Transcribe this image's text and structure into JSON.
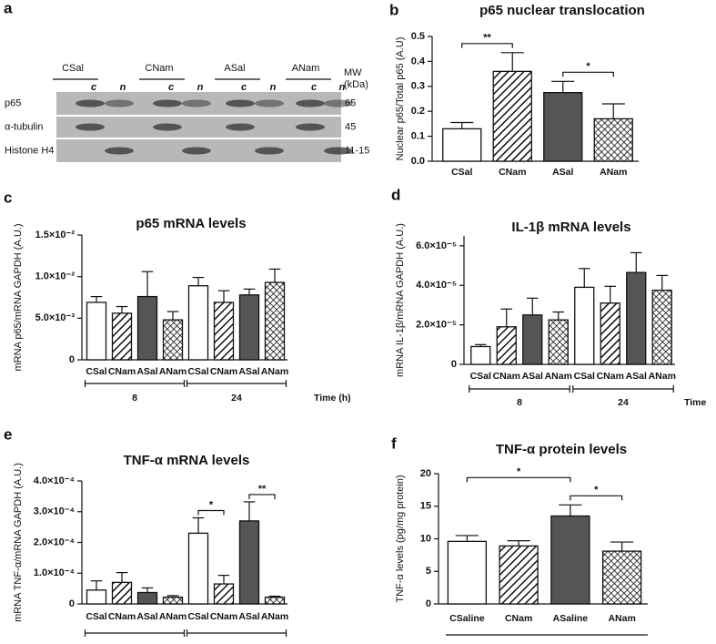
{
  "blot": {
    "panel": "a",
    "groups": [
      "CSal",
      "CNam",
      "ASal",
      "ANam"
    ],
    "lanes": [
      "c",
      "n"
    ],
    "mw_header": [
      "MW",
      "(kDa)"
    ],
    "rows": [
      {
        "label": "p65",
        "mw": "65"
      },
      {
        "label": "α-tubulin",
        "mw": "45"
      },
      {
        "label": "Histone H4",
        "mw": "11-15"
      }
    ]
  },
  "chart_data": [
    {
      "type": "bar",
      "panel": "b",
      "title": "p65 nuclear translocation",
      "ylabel": "Nuclear p65/Total p65 (A.U)",
      "categories": [
        "CSal",
        "CNam",
        "ASal",
        "ANam"
      ],
      "values": [
        0.13,
        0.36,
        0.275,
        0.17
      ],
      "errors": [
        0.025,
        0.075,
        0.045,
        0.06
      ],
      "fills": [
        "#ffffff",
        "hatch",
        "#555555",
        "crosshatch"
      ],
      "ylim": [
        0,
        0.5
      ],
      "yticks": [
        {
          "value": 0,
          "label": "0.0"
        },
        0.1,
        0.2,
        0.3,
        0.4,
        0.5
      ],
      "annotations": [
        "**",
        "*"
      ]
    },
    {
      "type": "bar",
      "panel": "c",
      "title": "p65 mRNA levels",
      "ylabel": "mRNA p65/mRNA GAPDH (A.U.)",
      "categories": [
        "CSal",
        "CNam",
        "ASal",
        "ANam",
        "CSal",
        "CNam",
        "ASal",
        "ANam"
      ],
      "values": [
        0.0069,
        0.0056,
        0.0076,
        0.0048,
        0.0089,
        0.0069,
        0.0078,
        0.0093
      ],
      "errors": [
        0.0007,
        0.0008,
        0.003,
        0.001,
        0.001,
        0.0014,
        0.0007,
        0.0016
      ],
      "fills": [
        "#ffffff",
        "hatch",
        "#555555",
        "crosshatch",
        "#ffffff",
        "hatch",
        "#555555",
        "crosshatch"
      ],
      "ylim": [
        0,
        0.015
      ],
      "yticks": [
        0,
        {
          "value": 0.005,
          "label": "5.0×10⁻³"
        },
        {
          "value": 0.01,
          "label": "1.0×10⁻²"
        },
        {
          "value": 0.015,
          "label": "1.5×10⁻²"
        }
      ],
      "groups": [
        "8",
        "24"
      ],
      "group_axis_label": "Time (h)"
    },
    {
      "type": "bar",
      "panel": "d",
      "title": "IL-1β mRNA levels",
      "ylabel": "mRNA IL-1β/mRNA GAPDH (A.U.)",
      "categories": [
        "CSal",
        "CNam",
        "ASal",
        "ANam",
        "CSal",
        "CNam",
        "ASal",
        "ANam"
      ],
      "values": [
        9e-06,
        1.9e-05,
        2.5e-05,
        2.25e-05,
        3.9e-05,
        3.1e-05,
        4.65e-05,
        3.75e-05
      ],
      "errors": [
        1e-06,
        9e-06,
        8.5e-06,
        4e-06,
        9.5e-06,
        8.5e-06,
        1e-05,
        7.5e-06
      ],
      "fills": [
        "#ffffff",
        "hatch",
        "#555555",
        "crosshatch",
        "#ffffff",
        "hatch",
        "#555555",
        "crosshatch"
      ],
      "ylim": [
        0,
        6.5e-05
      ],
      "yticks": [
        0,
        {
          "value": 2e-05,
          "label": "2.0×10⁻⁵"
        },
        {
          "value": 4e-05,
          "label": "4.0×10⁻⁵"
        },
        {
          "value": 6e-05,
          "label": "6.0×10⁻⁵"
        }
      ],
      "groups": [
        "8",
        "24"
      ],
      "group_axis_label": "Time"
    },
    {
      "type": "bar",
      "panel": "e",
      "title": "TNF-α mRNA levels",
      "ylabel": "mRNA TNF-α/mRNA GAPDH (A.U.)",
      "categories": [
        "CSal",
        "CNam",
        "ASal",
        "ANam",
        "CSal",
        "CNam",
        "ASal",
        "ANam"
      ],
      "values": [
        4.5e-05,
        7e-05,
        3.7e-05,
        2.2e-05,
        0.00023,
        6.5e-05,
        0.00027,
        2.2e-05
      ],
      "errors": [
        3e-05,
        3.2e-05,
        1.5e-05,
        5e-06,
        5e-05,
        2.8e-05,
        6.2e-05,
        3e-06
      ],
      "fills": [
        "#ffffff",
        "hatch",
        "#555555",
        "crosshatch",
        "#ffffff",
        "hatch",
        "#555555",
        "crosshatch"
      ],
      "ylim": [
        0,
        0.0004
      ],
      "yticks": [
        0,
        {
          "value": 0.0001,
          "label": "1.0×10⁻⁴"
        },
        {
          "value": 0.0002,
          "label": "2.0×10⁻⁴"
        },
        {
          "value": 0.0003,
          "label": "3.0×10⁻⁴"
        },
        {
          "value": 0.0004,
          "label": "4.0×10⁻⁴"
        }
      ],
      "groups": [
        null,
        null
      ],
      "annotations": [
        "*",
        "**"
      ]
    },
    {
      "type": "bar",
      "panel": "f",
      "title": "TNF-α protein levels",
      "ylabel": "TNF-α levels (pg/mg protein)",
      "categories": [
        "CSaline",
        "CNam",
        "ASaline",
        "ANam"
      ],
      "values": [
        9.6,
        8.9,
        13.5,
        8.1
      ],
      "errors": [
        0.9,
        0.8,
        1.7,
        1.4
      ],
      "fills": [
        "#ffffff",
        "hatch",
        "#555555",
        "crosshatch"
      ],
      "ylim": [
        0,
        20
      ],
      "yticks": [
        0,
        5,
        10,
        15,
        20
      ],
      "annotations": [
        "*",
        "*"
      ]
    }
  ]
}
